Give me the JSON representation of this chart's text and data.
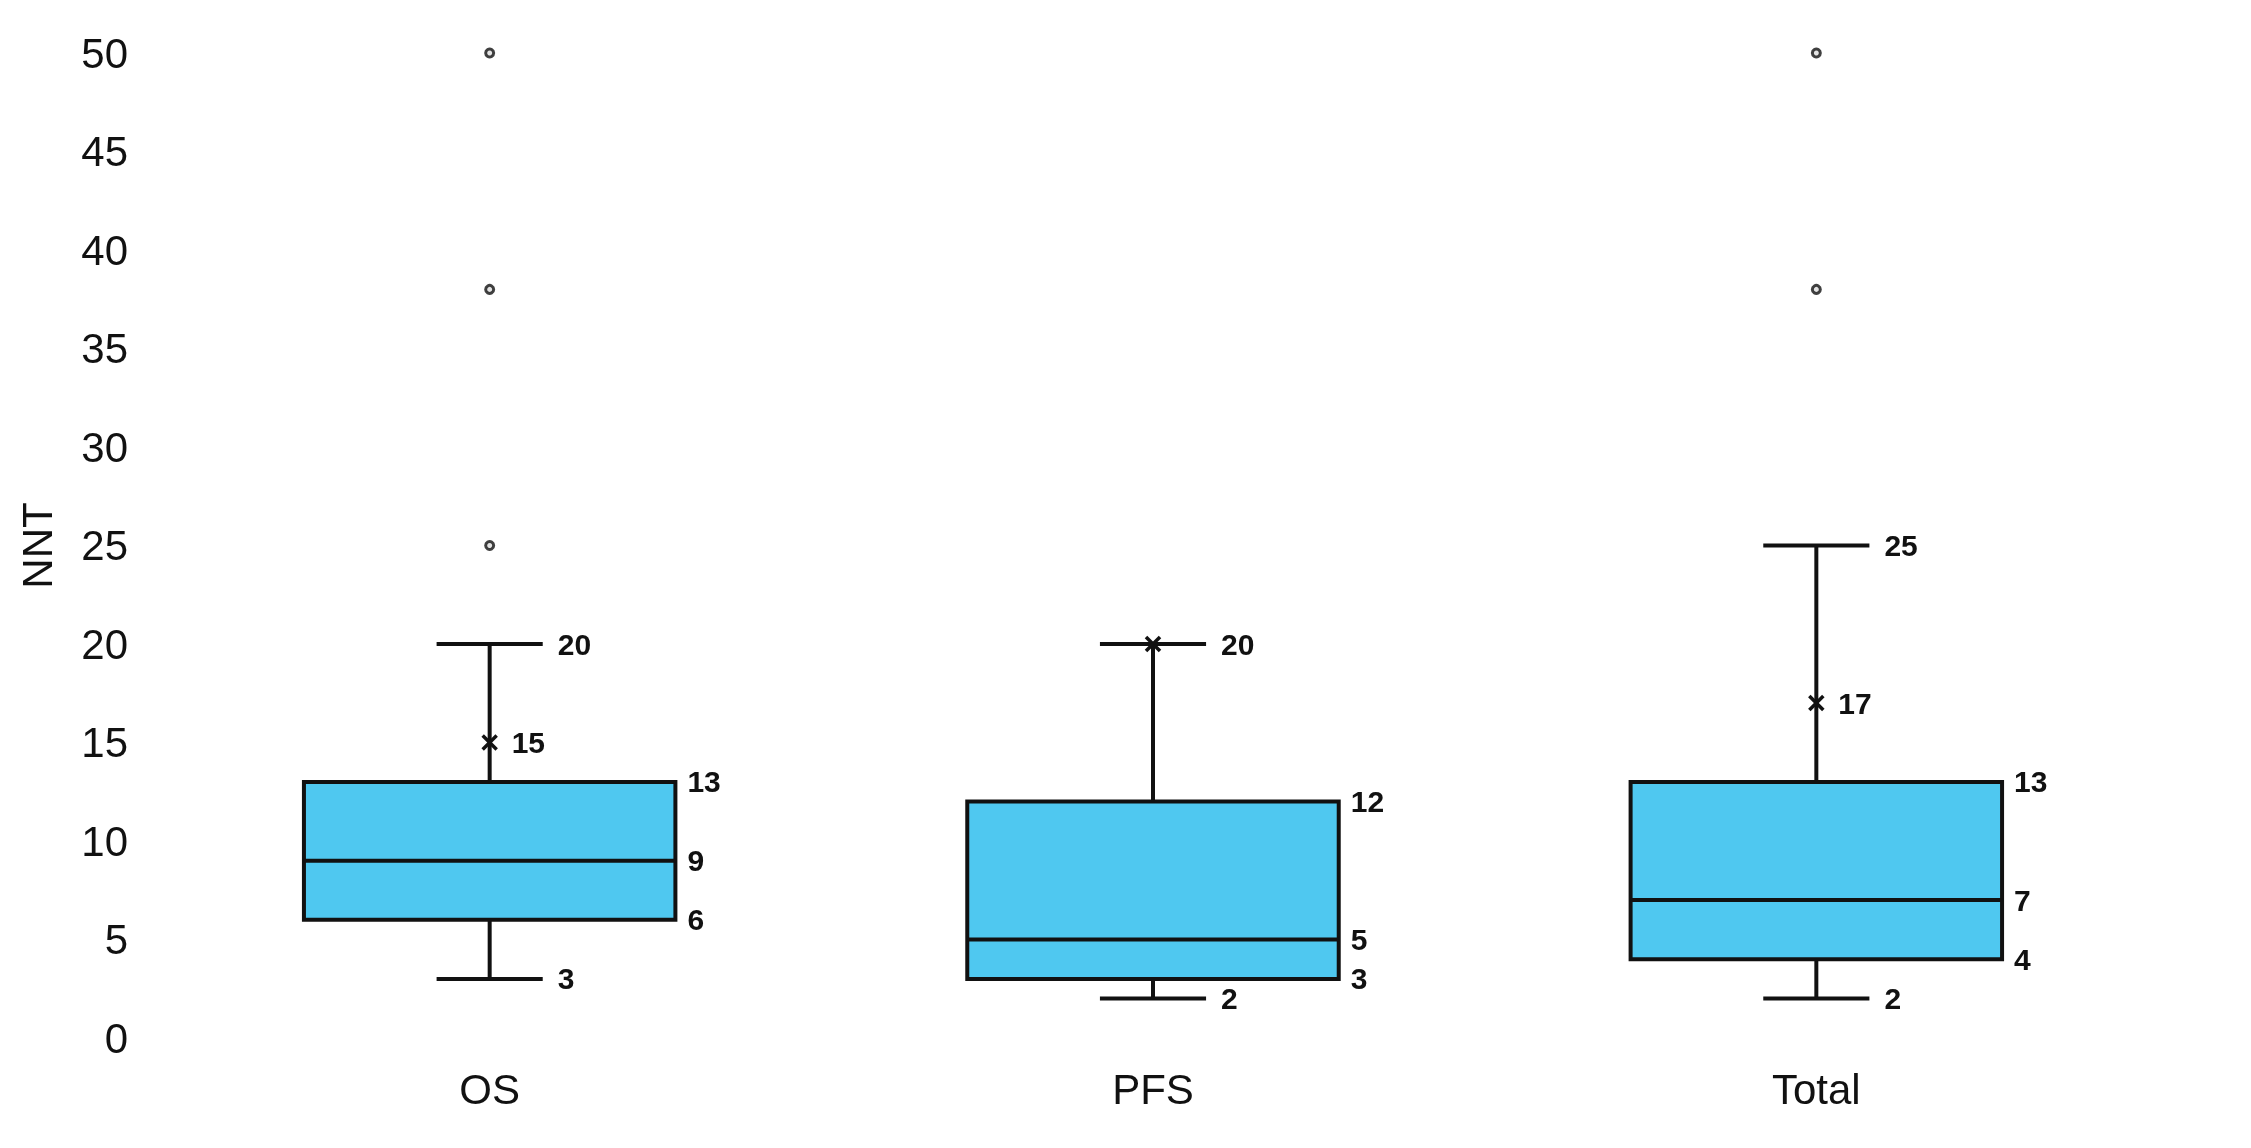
{
  "chart_data": {
    "type": "box",
    "ylabel": "NNT",
    "categories": [
      "OS",
      "PFS",
      "Total"
    ],
    "ylim": [
      0,
      50
    ],
    "yticks": [
      0,
      5,
      10,
      15,
      20,
      25,
      30,
      35,
      40,
      45,
      50
    ],
    "grid": false,
    "series": [
      {
        "color": "#4fc8f0",
        "boxes": [
          {
            "low": 3,
            "q1": 6,
            "median": 9,
            "q3": 13,
            "high": 20,
            "mean": 15,
            "outliers": [
              25,
              38,
              50
            ]
          },
          {
            "low": 2,
            "q1": 3,
            "median": 5,
            "q3": 12,
            "high": 20,
            "mean": 20
          },
          {
            "low": 2,
            "q1": 4,
            "median": 7,
            "q3": 13,
            "high": 25,
            "mean": 17,
            "outliers": [
              38,
              50
            ]
          }
        ]
      }
    ],
    "annotations": [
      {
        "text": "20",
        "x": "OS",
        "y": 20
      },
      {
        "text": "15",
        "x": "OS",
        "y": 15
      },
      "13",
      "9",
      "6",
      {
        "text": "3",
        "x": "OS",
        "y": 3
      },
      {
        "text": "20",
        "x": "PFS",
        "y": 20
      },
      "12",
      "5",
      "3",
      {
        "text": "2",
        "x": "PFS",
        "y": 2
      },
      {
        "text": "25",
        "x": "Total",
        "y": 25
      },
      {
        "text": "17",
        "x": "Total",
        "y": 17
      },
      "13",
      "7",
      "4",
      {
        "text": "2",
        "x": "Total",
        "y": 2
      }
    ]
  }
}
